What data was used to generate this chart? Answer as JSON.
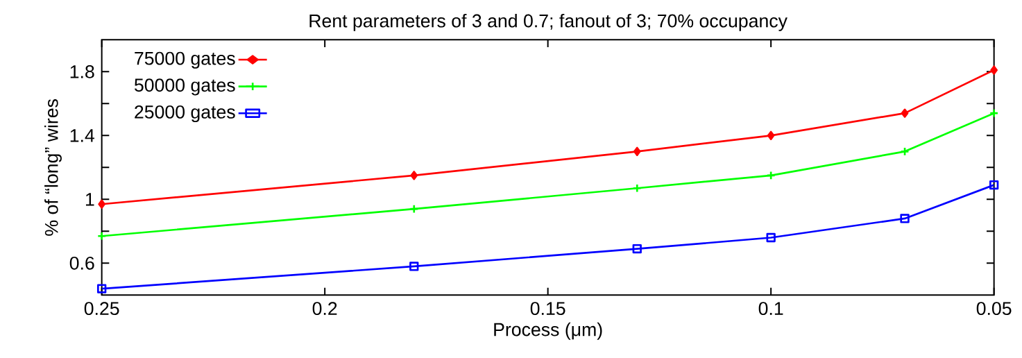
{
  "chart_data": {
    "type": "line",
    "title": "Rent parameters of 3 and 0.7; fanout of 3; 70% occupancy",
    "xlabel": "Process (μm)",
    "ylabel": "% of “long” wires",
    "x": [
      0.25,
      0.18,
      0.13,
      0.1,
      0.07,
      0.05
    ],
    "series": [
      {
        "name": "75000 gates",
        "color": "#ff0000",
        "marker": "diamond",
        "values": [
          0.97,
          1.15,
          1.3,
          1.4,
          1.54,
          1.81
        ]
      },
      {
        "name": "50000 gates",
        "color": "#00ff00",
        "marker": "cross",
        "values": [
          0.77,
          0.94,
          1.07,
          1.15,
          1.3,
          1.54
        ]
      },
      {
        "name": "25000 gates",
        "color": "#0000ff",
        "marker": "square",
        "values": [
          0.44,
          0.58,
          0.69,
          0.76,
          0.88,
          1.09
        ]
      }
    ],
    "xlim": [
      0.25,
      0.05
    ],
    "xticks": [
      0.25,
      0.2,
      0.15,
      0.1,
      0.05
    ],
    "ylim": [
      0.4,
      2.0
    ],
    "yticks": [
      0.6,
      {
        "value": 0.8,
        "label": null
      },
      1,
      {
        "value": 1.2,
        "label": null
      },
      1.4,
      {
        "value": 1.6,
        "label": null
      },
      1.8
    ],
    "legend": "top left",
    "grid": false,
    "line_style": "solid"
  }
}
